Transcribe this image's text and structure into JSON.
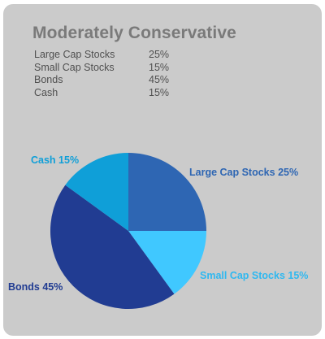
{
  "colors": {
    "card_background": "#cbcbcb",
    "title": "#7a7a7a",
    "allocation_text": "#505050"
  },
  "title": "Moderately Conservative",
  "allocation": [
    {
      "name": "Large Cap Stocks",
      "percent": "25%"
    },
    {
      "name": "Small Cap Stocks",
      "percent": "15%"
    },
    {
      "name": "Bonds",
      "percent": "45%"
    },
    {
      "name": "Cash",
      "percent": "15%"
    }
  ],
  "chart_data": {
    "type": "pie",
    "title": "Moderately Conservative",
    "start_angle_deg": 0,
    "direction": "clockwise",
    "slices": [
      {
        "name": "Large Cap Stocks",
        "value": 25,
        "label": "Large Cap Stocks 25%",
        "color": "#2e66b3",
        "label_color": "#2e66b3"
      },
      {
        "name": "Small Cap Stocks",
        "value": 15,
        "label": "Small Cap Stocks 15%",
        "color": "#40c8ff",
        "label_color": "#2fb8f0"
      },
      {
        "name": "Bonds",
        "value": 45,
        "label": "Bonds 45%",
        "color": "#213c92",
        "label_color": "#213c92"
      },
      {
        "name": "Cash",
        "value": 15,
        "label": "Cash 15%",
        "color": "#0f9fd8",
        "label_color": "#0f9fd8"
      }
    ]
  }
}
